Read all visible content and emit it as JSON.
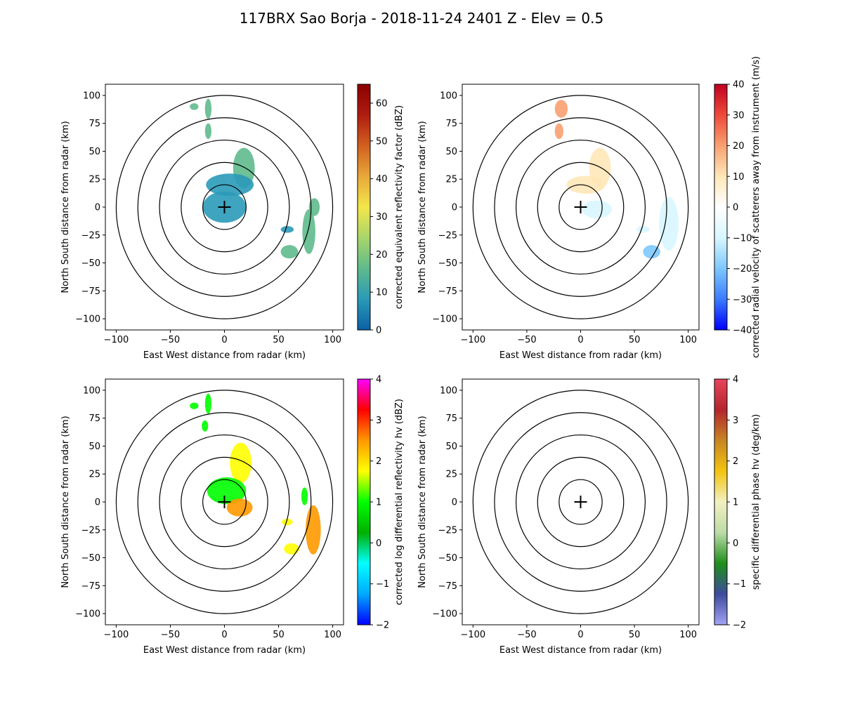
{
  "figure": {
    "title": "117BRX Sao Borja - 2018-11-24 2401 Z -  Elev = 0.5"
  },
  "chart_data": [
    {
      "type": "radar_ppi",
      "id": "reflectivity",
      "xlabel": "East West distance from radar (km)",
      "ylabel": "North South distance from radar (km)",
      "xlim": [
        -110,
        110
      ],
      "ylim": [
        -110,
        110
      ],
      "xticks": [
        -100,
        -50,
        0,
        50,
        100
      ],
      "yticks": [
        -100,
        -75,
        -50,
        -25,
        0,
        25,
        50,
        75,
        100
      ],
      "range_rings_km": [
        20,
        40,
        60,
        80,
        100
      ],
      "colorbar": {
        "label": "corrected equivalent reflectivity factor (dBZ)",
        "range": [
          0,
          65
        ],
        "ticks": [
          0,
          10,
          20,
          30,
          40,
          50,
          60
        ],
        "colors": [
          "#0b61a4",
          "#2a9ab8",
          "#5fba8c",
          "#a8d66a",
          "#f3e64a",
          "#e8a83a",
          "#d1601f",
          "#b01c10",
          "#8b0000"
        ]
      },
      "echoes": [
        {
          "x": 0,
          "y": 0,
          "rx": 20,
          "ry": 14,
          "value": 8
        },
        {
          "x": 18,
          "y": 35,
          "rx": 10,
          "ry": 18,
          "value": 16
        },
        {
          "x": 5,
          "y": 20,
          "rx": 22,
          "ry": 10,
          "value": 6
        },
        {
          "x": -15,
          "y": 88,
          "rx": 3,
          "ry": 9,
          "value": 14
        },
        {
          "x": -28,
          "y": 90,
          "rx": 4,
          "ry": 3,
          "value": 14
        },
        {
          "x": -15,
          "y": 68,
          "rx": 3,
          "ry": 7,
          "value": 14
        },
        {
          "x": 78,
          "y": -22,
          "rx": 6,
          "ry": 20,
          "value": 16
        },
        {
          "x": 60,
          "y": -40,
          "rx": 8,
          "ry": 6,
          "value": 14
        },
        {
          "x": 58,
          "y": -20,
          "rx": 6,
          "ry": 3,
          "value": 8
        },
        {
          "x": 83,
          "y": 0,
          "rx": 5,
          "ry": 8,
          "value": 14
        }
      ]
    },
    {
      "type": "radar_ppi",
      "id": "velocity",
      "xlabel": "East West distance from radar (km)",
      "ylabel": "North South distance from radar (km)",
      "xlim": [
        -110,
        110
      ],
      "ylim": [
        -110,
        110
      ],
      "xticks": [
        -100,
        -50,
        0,
        50,
        100
      ],
      "yticks": [
        -100,
        -75,
        -50,
        -25,
        0,
        25,
        50,
        75,
        100
      ],
      "range_rings_km": [
        20,
        40,
        60,
        80,
        100
      ],
      "colorbar": {
        "label": "corrected radial velocity of scatterers away from instrument (m/s)",
        "range": [
          -40,
          40
        ],
        "ticks": [
          -40,
          -30,
          -20,
          -10,
          0,
          10,
          20,
          30,
          40
        ],
        "colors": [
          "#0000ff",
          "#3a7cff",
          "#7dc8ff",
          "#d8f6ff",
          "#ffffff",
          "#ffe7b8",
          "#f8a070",
          "#ef4a3a",
          "#c00020"
        ]
      },
      "echoes": [
        {
          "x": 18,
          "y": 35,
          "rx": 10,
          "ry": 18,
          "value": 9
        },
        {
          "x": 5,
          "y": 20,
          "rx": 18,
          "ry": 8,
          "value": 6
        },
        {
          "x": 15,
          "y": -2,
          "rx": 14,
          "ry": 8,
          "value": -12
        },
        {
          "x": -18,
          "y": 88,
          "rx": 6,
          "ry": 8,
          "value": 22
        },
        {
          "x": -20,
          "y": 68,
          "rx": 4,
          "ry": 7,
          "value": 20
        },
        {
          "x": 82,
          "y": -15,
          "rx": 9,
          "ry": 24,
          "value": -11
        },
        {
          "x": 66,
          "y": -40,
          "rx": 8,
          "ry": 6,
          "value": -20
        },
        {
          "x": 58,
          "y": -20,
          "rx": 6,
          "ry": 3,
          "value": -13
        }
      ]
    },
    {
      "type": "radar_ppi",
      "id": "zdr",
      "xlabel": "East West distance from radar (km)",
      "ylabel": "North South distance from radar (km)",
      "xlim": [
        -110,
        110
      ],
      "ylim": [
        -110,
        110
      ],
      "xticks": [
        -100,
        -50,
        0,
        50,
        100
      ],
      "yticks": [
        -100,
        -75,
        -50,
        -25,
        0,
        25,
        50,
        75,
        100
      ],
      "range_rings_km": [
        20,
        40,
        60,
        80,
        100
      ],
      "colorbar": {
        "label": "corrected log differential reflectivity hv (dBZ)",
        "range": [
          -2,
          4
        ],
        "ticks": [
          -2,
          -1,
          0,
          1,
          2,
          3,
          4
        ],
        "colors": [
          "#0000ff",
          "#00aaff",
          "#00ffff",
          "#00b000",
          "#00ff00",
          "#ffff00",
          "#ff9900",
          "#ff0000",
          "#ff00ff"
        ]
      },
      "echoes": [
        {
          "x": 15,
          "y": 35,
          "rx": 10,
          "ry": 18,
          "value": 1.5
        },
        {
          "x": 2,
          "y": 10,
          "rx": 18,
          "ry": 12,
          "value": 1.1
        },
        {
          "x": 14,
          "y": -5,
          "rx": 12,
          "ry": 8,
          "value": 2.4
        },
        {
          "x": -15,
          "y": 88,
          "rx": 3,
          "ry": 9,
          "value": 1.0
        },
        {
          "x": -28,
          "y": 86,
          "rx": 4,
          "ry": 3,
          "value": 1.0
        },
        {
          "x": -18,
          "y": 68,
          "rx": 3,
          "ry": 5,
          "value": 1.0
        },
        {
          "x": 82,
          "y": -25,
          "rx": 7,
          "ry": 22,
          "value": 2.6
        },
        {
          "x": 62,
          "y": -42,
          "rx": 7,
          "ry": 5,
          "value": 2.0
        },
        {
          "x": 58,
          "y": -18,
          "rx": 5,
          "ry": 3,
          "value": 1.8
        },
        {
          "x": 74,
          "y": 5,
          "rx": 3,
          "ry": 8,
          "value": 1.3
        }
      ]
    },
    {
      "type": "radar_ppi",
      "id": "kdp",
      "xlabel": "East West distance from radar (km)",
      "ylabel": "North South distance from radar (km)",
      "xlim": [
        -110,
        110
      ],
      "ylim": [
        -110,
        110
      ],
      "xticks": [
        -100,
        -50,
        0,
        50,
        100
      ],
      "yticks": [
        -100,
        -75,
        -50,
        -25,
        0,
        25,
        50,
        75,
        100
      ],
      "range_rings_km": [
        20,
        40,
        60,
        80,
        100
      ],
      "colorbar": {
        "label": "specific differential phase hv (deg/km)",
        "range": [
          -2,
          4
        ],
        "ticks": [
          -2,
          -1,
          0,
          1,
          2,
          3,
          4
        ],
        "colors": [
          "#a3a3f5",
          "#3c4b9c",
          "#1f8f1a",
          "#bcdca8",
          "#f2f0c0",
          "#f3c40f",
          "#c78623",
          "#b3262e",
          "#e8455a"
        ]
      },
      "echoes": []
    }
  ]
}
